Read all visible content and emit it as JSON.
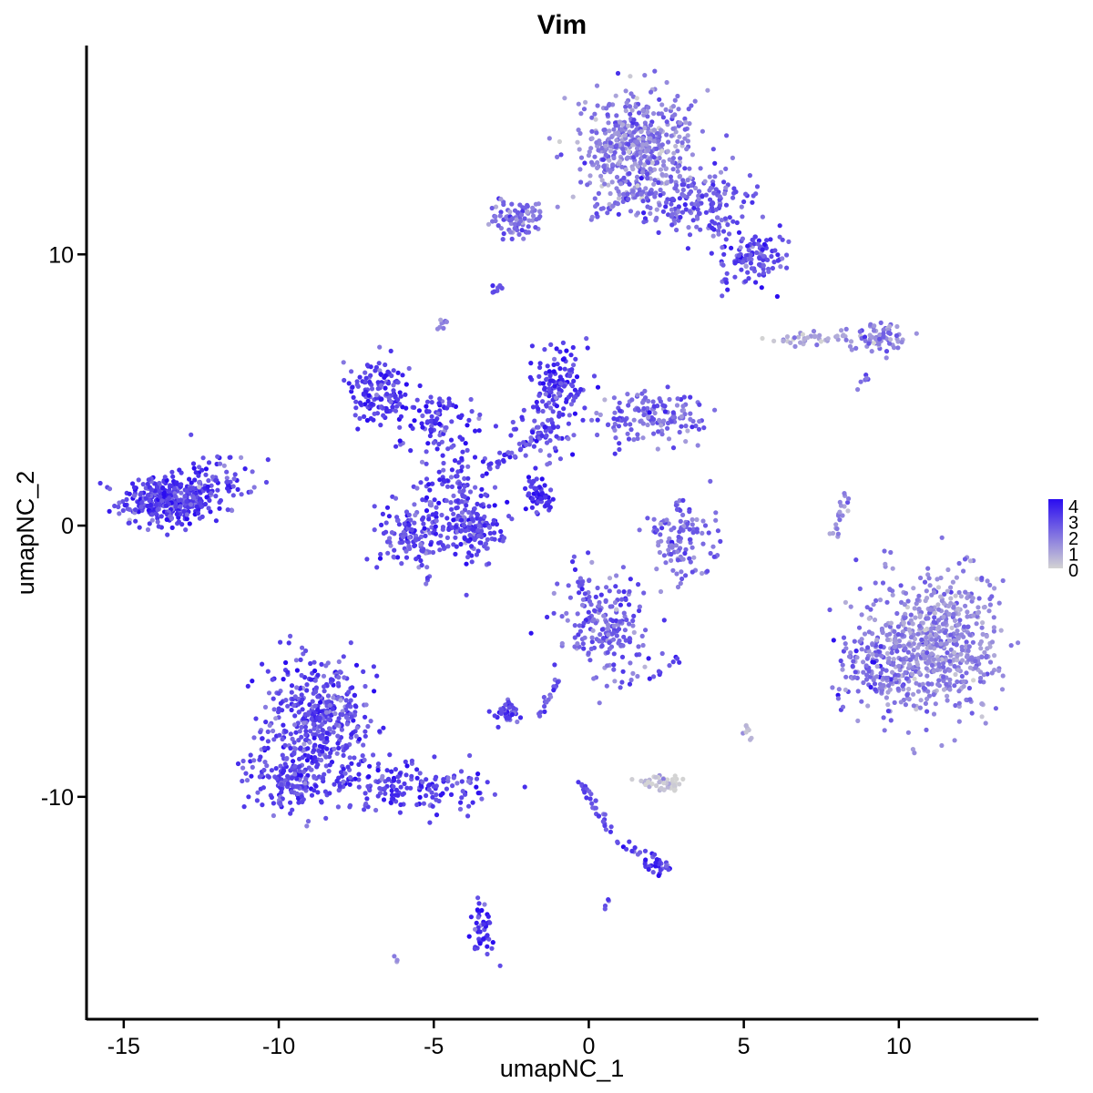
{
  "chart_data": {
    "type": "scatter",
    "title": "Vim",
    "xlabel": "umapNC_1",
    "ylabel": "umapNC_2",
    "xlim": [
      -16.2,
      14.5
    ],
    "ylim": [
      -18.2,
      17.7
    ],
    "x_ticks": [
      -15,
      -10,
      -5,
      0,
      5,
      10
    ],
    "y_ticks": [
      -10,
      0,
      10
    ],
    "grid": false,
    "legend": {
      "position": "right",
      "type": "colorbar",
      "labels": [
        "4",
        "3",
        "2",
        "1",
        "0"
      ],
      "min": 0,
      "max": 4
    },
    "color_low": "#d3d3d3",
    "color_high": "#2a0cf0",
    "point_clusters": [
      {
        "x": -13.6,
        "y": 0.9,
        "sx": 0.75,
        "sy": 0.45,
        "n": 360,
        "expr": 3.0
      },
      {
        "x": -12.0,
        "y": 1.7,
        "sx": 0.55,
        "sy": 0.55,
        "n": 70,
        "expr": 2.8
      },
      {
        "x": -8.7,
        "y": -7.2,
        "sx": 0.9,
        "sy": 1.3,
        "n": 420,
        "expr": 2.8
      },
      {
        "x": -9.6,
        "y": -9.3,
        "sx": 0.7,
        "sy": 0.6,
        "n": 160,
        "expr": 2.8
      },
      {
        "x": -5.8,
        "y": -9.6,
        "sx": 1.3,
        "sy": 0.45,
        "n": 170,
        "expr": 3.0
      },
      {
        "x": -6.8,
        "y": 5.0,
        "sx": 0.55,
        "sy": 0.55,
        "n": 140,
        "expr": 3.0
      },
      {
        "x": -4.9,
        "y": 3.9,
        "sx": 0.7,
        "sy": 0.6,
        "n": 90,
        "expr": 3.0
      },
      {
        "x": -4.3,
        "y": 1.4,
        "sx": 0.6,
        "sy": 0.9,
        "n": 110,
        "expr": 2.9
      },
      {
        "x": -5.5,
        "y": -0.4,
        "sx": 0.65,
        "sy": 0.7,
        "n": 150,
        "expr": 2.6
      },
      {
        "x": -3.6,
        "y": -0.2,
        "sx": 0.5,
        "sy": 0.6,
        "n": 120,
        "expr": 2.9
      },
      {
        "x": -0.9,
        "y": 5.2,
        "sx": 0.45,
        "sy": 0.6,
        "n": 120,
        "expr": 3.1
      },
      {
        "x": 1.9,
        "y": 4.0,
        "sx": 0.9,
        "sy": 0.45,
        "n": 150,
        "expr": 2.2
      },
      {
        "x": -1.5,
        "y": 3.6,
        "sx": 0.6,
        "sy": 0.5,
        "n": 60,
        "expr": 2.6
      },
      {
        "x": -1.8,
        "y": 1.1,
        "sx": 0.25,
        "sy": 0.25,
        "n": 30,
        "expr": 3.6
      },
      {
        "x": 0.6,
        "y": -3.7,
        "sx": 0.7,
        "sy": 0.9,
        "n": 200,
        "expr": 2.3
      },
      {
        "x": -2.6,
        "y": -6.9,
        "sx": 0.25,
        "sy": 0.2,
        "n": 40,
        "expr": 2.6
      },
      {
        "x": 3.1,
        "y": -0.5,
        "sx": 0.55,
        "sy": 0.7,
        "n": 120,
        "expr": 2.0
      },
      {
        "x": 1.5,
        "y": 14.0,
        "sx": 0.9,
        "sy": 1.1,
        "n": 480,
        "expr": 1.7
      },
      {
        "x": 3.3,
        "y": 11.9,
        "sx": 1.0,
        "sy": 0.6,
        "n": 180,
        "expr": 2.5
      },
      {
        "x": 5.4,
        "y": 9.9,
        "sx": 0.45,
        "sy": 0.45,
        "n": 110,
        "expr": 2.8
      },
      {
        "x": -2.4,
        "y": 11.4,
        "sx": 0.55,
        "sy": 0.35,
        "n": 90,
        "expr": 2.0
      },
      {
        "x": 7.3,
        "y": 6.9,
        "sx": 0.7,
        "sy": 0.12,
        "n": 40,
        "expr": 1.0
      },
      {
        "x": 9.3,
        "y": 6.9,
        "sx": 0.45,
        "sy": 0.25,
        "n": 70,
        "expr": 1.7
      },
      {
        "x": 11.2,
        "y": -4.3,
        "sx": 1.0,
        "sy": 1.3,
        "n": 620,
        "expr": 1.5
      },
      {
        "x": 9.2,
        "y": -5.2,
        "sx": 0.6,
        "sy": 0.9,
        "n": 150,
        "expr": 2.0
      },
      {
        "x": 2.4,
        "y": -9.5,
        "sx": 0.35,
        "sy": 0.15,
        "n": 45,
        "expr": 0.2
      },
      {
        "x": -3.4,
        "y": -14.8,
        "sx": 0.2,
        "sy": 0.5,
        "n": 45,
        "expr": 3.2
      },
      {
        "x": 2.2,
        "y": -12.6,
        "sx": 0.25,
        "sy": 0.15,
        "n": 25,
        "expr": 2.8
      }
    ],
    "point_trails": [
      {
        "from": [
          -1.9,
          1.7
        ],
        "to": [
          -1.2,
          0.6
        ],
        "n": 25,
        "expr": 3.4
      },
      {
        "from": [
          -3.4,
          2.0
        ],
        "to": [
          -1.2,
          3.6
        ],
        "n": 40,
        "expr": 2.8
      },
      {
        "from": [
          -0.5,
          -1.1
        ],
        "to": [
          -0.2,
          -2.8
        ],
        "n": 8,
        "expr": 2.5
      },
      {
        "from": [
          0.1,
          11.3
        ],
        "to": [
          1.5,
          12.3
        ],
        "n": 22,
        "expr": 2.2
      },
      {
        "from": [
          -0.3,
          -9.4
        ],
        "to": [
          0.7,
          -11.2
        ],
        "n": 30,
        "expr": 2.6
      },
      {
        "from": [
          0.9,
          -11.7
        ],
        "to": [
          2.3,
          -12.3
        ],
        "n": 18,
        "expr": 2.6
      },
      {
        "from": [
          -1.0,
          -5.7
        ],
        "to": [
          -1.6,
          -7.0
        ],
        "n": 18,
        "expr": 2.5
      },
      {
        "from": [
          7.9,
          -0.4
        ],
        "to": [
          8.3,
          1.2
        ],
        "n": 20,
        "expr": 1.6
      },
      {
        "from": [
          -3.1,
          8.6
        ],
        "to": [
          -2.9,
          8.8
        ],
        "n": 8,
        "expr": 2.4
      },
      {
        "from": [
          -4.9,
          7.4
        ],
        "to": [
          -4.6,
          7.6
        ],
        "n": 8,
        "expr": 1.6
      },
      {
        "from": [
          0.3,
          8.6
        ],
        "to": [
          -0.1,
          9.4
        ],
        "n": 0,
        "expr": 0
      },
      {
        "from": [
          4.2,
          11.6
        ],
        "to": [
          4.4,
          8.6
        ],
        "n": 20,
        "expr": 2.6
      },
      {
        "from": [
          8.7,
          5.2
        ],
        "to": [
          9.1,
          5.5
        ],
        "n": 6,
        "expr": 1.8
      },
      {
        "from": [
          2.0,
          -5.6
        ],
        "to": [
          3.0,
          -4.9
        ],
        "n": 10,
        "expr": 2.8
      },
      {
        "from": [
          5.0,
          -7.3
        ],
        "to": [
          5.2,
          -7.8
        ],
        "n": 8,
        "expr": 1.0
      },
      {
        "from": [
          0.5,
          -13.9
        ],
        "to": [
          0.6,
          -14.0
        ],
        "n": 4,
        "expr": 2.8
      },
      {
        "from": [
          -6.2,
          -16.0
        ],
        "to": [
          -6.1,
          -15.9
        ],
        "n": 3,
        "expr": 1.8
      }
    ]
  }
}
